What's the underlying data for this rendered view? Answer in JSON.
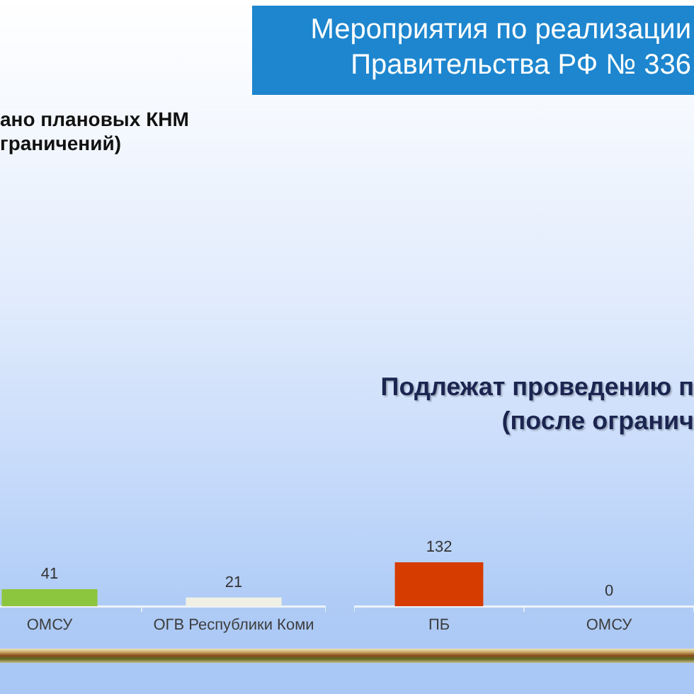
{
  "chart_data": [
    {
      "type": "other",
      "title": "Мероприятия по реализации\nПравительства РФ № 336"
    },
    {
      "type": "bar",
      "title": "ано плановых КНМ\nграничений)",
      "categories": [
        "ОМСУ",
        "ОГВ Республики Коми"
      ],
      "values": [
        41,
        21
      ],
      "colors": [
        "#8cc63f",
        "#f0f0e4"
      ],
      "data_labels": true,
      "tick_labels": "x"
    },
    {
      "type": "bar",
      "title": "Подлежат проведению п\n(после огранич",
      "categories": [
        "ПБ",
        "ОМСУ"
      ],
      "values": [
        132,
        0
      ],
      "color": "#d63c00",
      "data_labels": true,
      "tick_labels": "x"
    }
  ]
}
